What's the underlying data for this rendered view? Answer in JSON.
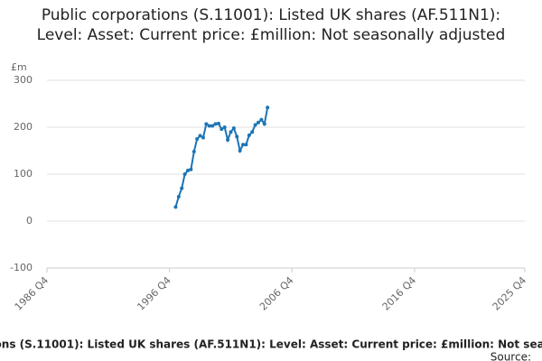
{
  "chart_data": {
    "type": "line",
    "title": "Public corporations (S.11001): Listed UK shares (AF.511N1): Level: Asset: Current price: £million: Not seasonally adjusted",
    "y_label": "£m",
    "source": "Source:",
    "x": [
      "1997 Q2",
      "1997 Q3",
      "1997 Q4",
      "1998 Q1",
      "1998 Q2",
      "1998 Q3",
      "1998 Q4",
      "1999 Q1",
      "1999 Q2",
      "1999 Q3",
      "1999 Q4",
      "2000 Q1",
      "2000 Q2",
      "2000 Q3",
      "2000 Q4",
      "2001 Q1",
      "2001 Q2",
      "2001 Q3",
      "2001 Q4",
      "2002 Q1",
      "2002 Q2",
      "2002 Q3",
      "2002 Q4",
      "2003 Q1",
      "2003 Q2",
      "2003 Q3",
      "2003 Q4",
      "2004 Q1",
      "2004 Q2",
      "2004 Q3",
      "2004 Q4"
    ],
    "series": [
      {
        "color": "#1c75b5",
        "values": [
          30,
          52,
          70,
          100,
          108,
          110,
          148,
          175,
          182,
          178,
          207,
          203,
          203,
          207,
          208,
          196,
          200,
          173,
          190,
          198,
          180,
          150,
          163,
          163,
          183,
          190,
          205,
          210,
          216,
          207,
          242
        ]
      }
    ],
    "xlim": [
      "1986 Q4",
      "2025 Q4"
    ],
    "xticks": [
      "1986 Q4",
      "1996 Q4",
      "2006 Q4",
      "2016 Q4",
      "2025 Q4"
    ],
    "ylim": [
      -100,
      300
    ],
    "yticks": [
      -100,
      0,
      100,
      200,
      300
    ],
    "grid": true
  }
}
